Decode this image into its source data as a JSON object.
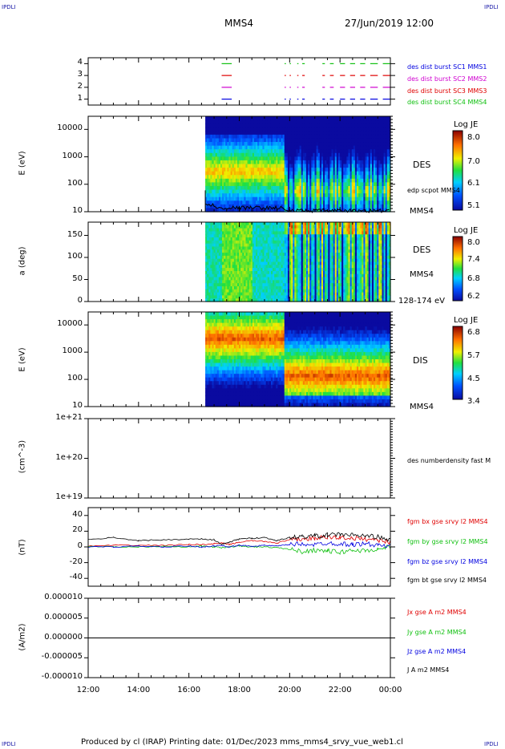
{
  "corners": {
    "tl": "IPDLI",
    "tr": "IPDLI",
    "bl": "IPDLI",
    "br": "IPDLI"
  },
  "header": {
    "spacecraft": "MMS4",
    "datetime": "27/Jun/2019 12:00"
  },
  "footer": {
    "text": "Produced by cl (IRAP)   Printing date: 01/Dec/2023   mms_mms4_srvy_vue_web1.cl"
  },
  "colors": {
    "red": "#e00000",
    "green": "#10c010",
    "blue": "#0000e0",
    "magenta": "#d000d0",
    "black": "#000000"
  },
  "chart_data": [
    {
      "type": "line",
      "panel": "burst-availability",
      "y_ticks": [
        "1",
        "2",
        "3",
        "4"
      ],
      "ylim": [
        0.5,
        4.5
      ],
      "series": [
        {
          "name": "des dist burst SC1 MMS1",
          "y": 1,
          "color": "#0000e0"
        },
        {
          "name": "des dist burst SC2 MMS2",
          "y": 2,
          "color": "#d000d0"
        },
        {
          "name": "des dist burst SC3 MMS3",
          "y": 3,
          "color": "#e00000"
        },
        {
          "name": "des dist burst SC4 MMS4",
          "y": 4,
          "color": "#10c010"
        }
      ],
      "intervals_hours": [
        [
          17.3,
          17.7
        ],
        [
          19.8,
          19.85
        ],
        [
          20.0,
          20.05
        ],
        [
          20.3,
          20.35
        ],
        [
          20.5,
          20.6
        ],
        [
          21.3,
          21.4
        ],
        [
          21.6,
          21.75
        ],
        [
          22.0,
          22.2
        ],
        [
          22.4,
          22.6
        ],
        [
          22.8,
          23.0
        ],
        [
          23.2,
          23.5
        ],
        [
          23.7,
          24.0
        ]
      ]
    },
    {
      "type": "heatmap",
      "panel": "des-energy",
      "ylabel": "E (eV)",
      "y_log": true,
      "y_ticks": [
        "10",
        "100",
        "1000",
        "10000"
      ],
      "ylim": [
        10,
        30000
      ],
      "label": "DES",
      "overlay": "edp scpot MMS4",
      "probe": "MMS4",
      "colorbar": {
        "title": "Log JE",
        "ticks": [
          "8.0",
          "7.0",
          "6.1",
          "5.1"
        ],
        "range": [
          5.1,
          8.1
        ]
      }
    },
    {
      "type": "heatmap",
      "panel": "des-pitch",
      "ylabel": "a (deg)",
      "y_ticks": [
        "0",
        "50",
        "100",
        "150"
      ],
      "ylim": [
        0,
        180
      ],
      "label": "DES",
      "probe": "MMS4",
      "energy_range": "128-174 eV",
      "colorbar": {
        "title": "Log JE",
        "ticks": [
          "8.0",
          "7.4",
          "6.8",
          "6.2"
        ],
        "range": [
          6.2,
          8.1
        ]
      }
    },
    {
      "type": "heatmap",
      "panel": "dis-energy",
      "ylabel": "E (eV)",
      "y_log": true,
      "y_ticks": [
        "10",
        "100",
        "1000",
        "10000"
      ],
      "ylim": [
        10,
        30000
      ],
      "label": "DIS",
      "probe": "MMS4",
      "colorbar": {
        "title": "Log JE",
        "ticks": [
          "6.8",
          "5.7",
          "4.5",
          "3.4"
        ],
        "range": [
          3.4,
          7.0
        ]
      }
    },
    {
      "type": "line",
      "panel": "density",
      "ylabel": "(cm^-3)",
      "y_log": true,
      "y_ticks": [
        "1e+19",
        "1e+20",
        "1e+21"
      ],
      "ylim": [
        1e+19,
        1e+21
      ],
      "series": [
        {
          "name": "des numberdensity fast M",
          "values": []
        }
      ]
    },
    {
      "type": "line",
      "panel": "magnetic-field",
      "ylabel": "(nT)",
      "y_ticks": [
        "-40",
        "-20",
        "0",
        "20",
        "40"
      ],
      "ylim": [
        -50,
        50
      ],
      "x_hours": [
        12,
        13,
        14,
        15,
        16,
        16.5,
        17,
        17.3,
        17.6,
        18,
        18.5,
        19,
        19.5,
        20,
        20.5,
        21,
        21.5,
        22,
        22.5,
        23,
        23.5,
        24
      ],
      "series": [
        {
          "name": "fgm bx gse srvy l2 MMS4",
          "color": "#e00000",
          "values": [
            1,
            2,
            2,
            2,
            3,
            3,
            4,
            5,
            3,
            6,
            8,
            7,
            5,
            9,
            10,
            11,
            12,
            12,
            11,
            10,
            9,
            6
          ]
        },
        {
          "name": "fgm by gse srvy l2 MMS4",
          "color": "#10c010",
          "values": [
            1,
            0,
            0,
            1,
            0,
            1,
            0,
            -1,
            0,
            1,
            0,
            0,
            -1,
            -3,
            -6,
            -4,
            -5,
            -7,
            -4,
            -5,
            -3,
            0
          ]
        },
        {
          "name": "fgm bz gse srvy l2 MMS4",
          "color": "#0000e0",
          "values": [
            0,
            0,
            1,
            0,
            1,
            0,
            1,
            2,
            0,
            2,
            1,
            2,
            1,
            3,
            4,
            3,
            5,
            4,
            3,
            4,
            2,
            1
          ]
        },
        {
          "name": "fgm bt gse srvy l2 MMS4",
          "color": "#000000",
          "values": [
            9,
            12,
            8,
            9,
            10,
            10,
            9,
            3,
            6,
            10,
            11,
            12,
            8,
            12,
            13,
            14,
            15,
            16,
            15,
            14,
            13,
            8
          ]
        }
      ]
    },
    {
      "type": "line",
      "panel": "current-density",
      "ylabel": "(A/m2)",
      "y_ticks": [
        "-0.000010",
        "-0.000005",
        "0.000000",
        "0.000005",
        "0.000010"
      ],
      "ylim": [
        -1e-05,
        1e-05
      ],
      "series": [
        {
          "name": "Jx gse A m2 MMS4",
          "color": "#e00000"
        },
        {
          "name": "Jy gse A m2 MMS4",
          "color": "#10c010"
        },
        {
          "name": "Jz gse A m2 MMS4",
          "color": "#0000e0"
        },
        {
          "name": "J A m2 MMS4",
          "color": "#000000"
        }
      ]
    }
  ],
  "x_axis": {
    "ticks": [
      "12:00",
      "14:00",
      "16:00",
      "18:00",
      "20:00",
      "22:00",
      "00:00"
    ],
    "range_hours": [
      12,
      24
    ]
  }
}
